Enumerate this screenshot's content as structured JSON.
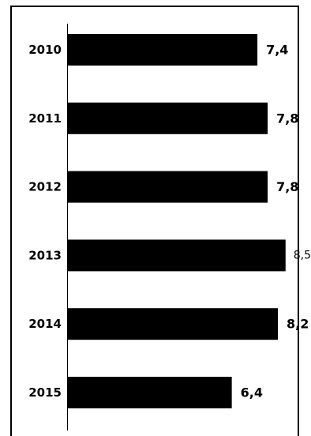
{
  "chart_data": {
    "type": "bar",
    "orientation": "horizontal",
    "categories": [
      "2010",
      "2011",
      "2012",
      "2013",
      "2014",
      "2015"
    ],
    "values": [
      7.4,
      7.8,
      7.8,
      8.5,
      8.2,
      6.4
    ],
    "value_labels": [
      "7,4",
      "7,8",
      "7,8",
      "8,5",
      "8,2",
      "6,4"
    ],
    "value_label_bold": [
      true,
      true,
      true,
      false,
      true,
      true
    ],
    "title": "",
    "xlabel": "",
    "ylabel": "",
    "xlim": [
      0,
      9
    ],
    "grid": false,
    "legend": "none",
    "bar_color": "#000000"
  }
}
